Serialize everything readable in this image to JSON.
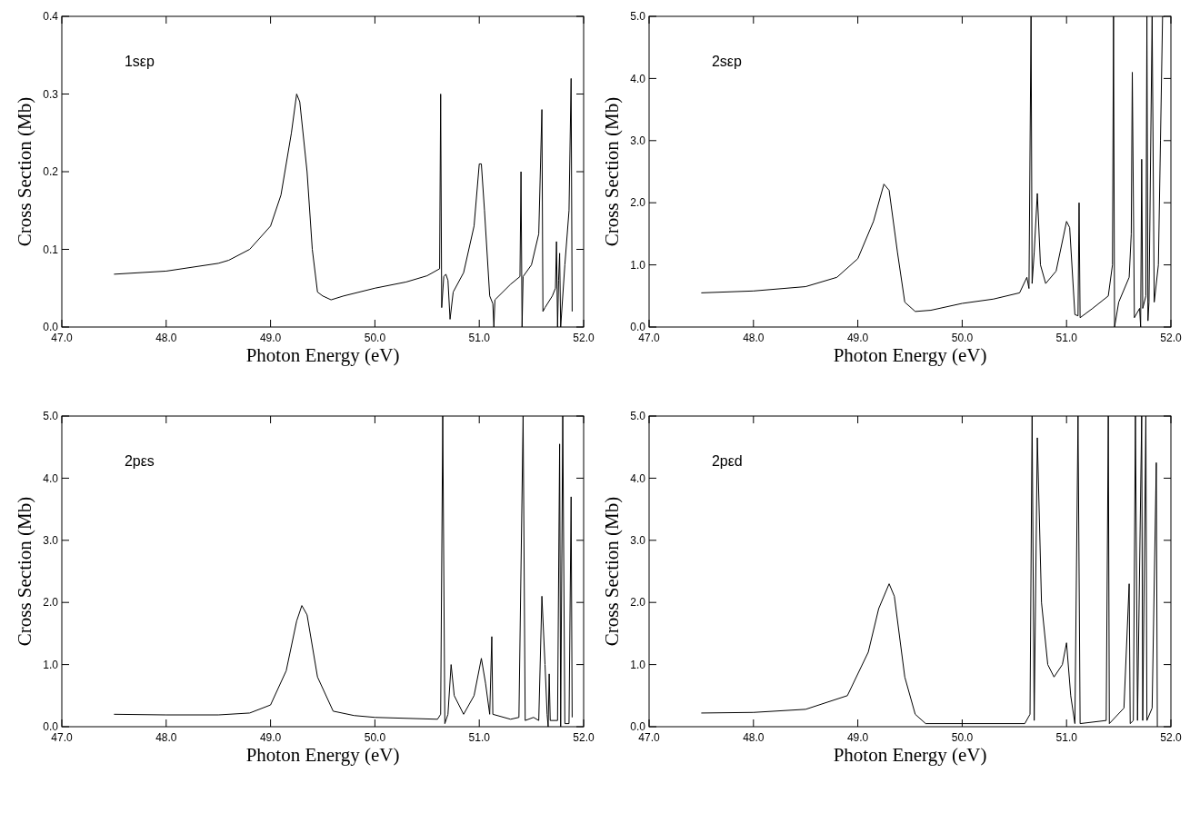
{
  "chart_data": [
    {
      "type": "line",
      "xlabel": "Photon Energy (eV)",
      "ylabel": "Cross Section (Mb)",
      "annotations": [
        "1sεp"
      ],
      "xlim": [
        47,
        52
      ],
      "ylim": [
        0,
        0.4
      ],
      "xticks": [
        {
          "value": 47,
          "label": "47.0"
        },
        {
          "value": 48,
          "label": "48.0"
        },
        {
          "value": 49,
          "label": "49.0"
        },
        {
          "value": 50,
          "label": "50.0"
        },
        {
          "value": 51,
          "label": "51.0"
        },
        {
          "value": 52,
          "label": "52.0"
        }
      ],
      "yticks": [
        {
          "value": 0,
          "label": "0.0"
        },
        {
          "value": 0.1,
          "label": "0.1"
        },
        {
          "value": 0.2,
          "label": "0.2"
        },
        {
          "value": 0.3,
          "label": "0.3"
        },
        {
          "value": 0.4,
          "label": "0.4"
        }
      ],
      "series": [
        {
          "color": "#000000",
          "x": [
            47.5,
            48,
            48.5,
            48.6,
            48.8,
            49,
            49.1,
            49.2,
            49.25,
            49.28,
            49.35,
            49.4,
            49.45,
            49.5,
            49.58,
            49.7,
            50,
            50.3,
            50.5,
            50.62,
            50.63,
            50.64,
            50.66,
            50.68,
            50.7,
            50.72,
            50.75,
            50.85,
            50.95,
            51,
            51.02,
            51.05,
            51.1,
            51.13,
            51.14,
            51.15,
            51.3,
            51.39,
            51.4,
            51.41,
            51.42,
            51.5,
            51.57,
            51.6,
            51.61,
            51.63,
            51.7,
            51.73,
            51.74,
            51.75,
            51.76,
            51.77,
            51.78,
            51.82,
            51.86,
            51.88,
            51.89
          ],
          "values": [
            0.068,
            0.072,
            0.082,
            0.086,
            0.1,
            0.13,
            0.17,
            0.25,
            0.3,
            0.29,
            0.2,
            0.1,
            0.045,
            0.04,
            0.035,
            0.04,
            0.05,
            0.058,
            0.066,
            0.075,
            0.3,
            0.025,
            0.065,
            0.068,
            0.06,
            0.01,
            0.045,
            0.07,
            0.13,
            0.21,
            0.21,
            0.15,
            0.04,
            0.03,
            0.0,
            0.035,
            0.055,
            0.065,
            0.2,
            0.0,
            0.065,
            0.08,
            0.12,
            0.28,
            0.02,
            0.025,
            0.04,
            0.05,
            0.11,
            0.0,
            0.06,
            0.095,
            0.0,
            0.08,
            0.15,
            0.32,
            0.02
          ]
        }
      ]
    },
    {
      "type": "line",
      "xlabel": "Photon Energy (eV)",
      "ylabel": "Cross Section (Mb)",
      "annotations": [
        "2sεp"
      ],
      "xlim": [
        47,
        52
      ],
      "ylim": [
        0,
        5
      ],
      "xticks": [
        {
          "value": 47,
          "label": "47.0"
        },
        {
          "value": 48,
          "label": "48.0"
        },
        {
          "value": 49,
          "label": "49.0"
        },
        {
          "value": 50,
          "label": "50.0"
        },
        {
          "value": 51,
          "label": "51.0"
        },
        {
          "value": 52,
          "label": "52.0"
        }
      ],
      "yticks": [
        {
          "value": 0,
          "label": "0.0"
        },
        {
          "value": 1,
          "label": "1.0"
        },
        {
          "value": 2,
          "label": "2.0"
        },
        {
          "value": 3,
          "label": "3.0"
        },
        {
          "value": 4,
          "label": "4.0"
        },
        {
          "value": 5,
          "label": "5.0"
        }
      ],
      "series": [
        {
          "color": "#000000",
          "x": [
            47.5,
            48,
            48.5,
            48.8,
            49,
            49.15,
            49.25,
            49.3,
            49.38,
            49.45,
            49.55,
            49.7,
            50,
            50.3,
            50.55,
            50.62,
            50.64,
            50.66,
            50.67,
            50.69,
            50.72,
            50.75,
            50.8,
            50.9,
            51,
            51.03,
            51.08,
            51.11,
            51.12,
            51.13,
            51.25,
            51.4,
            51.44,
            51.45,
            51.46,
            51.5,
            51.6,
            51.62,
            51.63,
            51.65,
            51.7,
            51.71,
            51.72,
            51.73,
            51.76,
            51.77,
            51.78,
            51.79,
            51.82,
            51.84,
            51.88,
            51.9,
            51.92,
            51.94
          ],
          "values": [
            0.55,
            0.58,
            0.65,
            0.8,
            1.1,
            1.7,
            2.3,
            2.2,
            1.2,
            0.4,
            0.25,
            0.27,
            0.38,
            0.45,
            0.55,
            0.8,
            0.62,
            5,
            0.7,
            1.2,
            2.15,
            1.0,
            0.7,
            0.9,
            1.7,
            1.6,
            0.2,
            0.18,
            2.0,
            0.15,
            0.3,
            0.5,
            1.0,
            5,
            0.0,
            0.4,
            0.8,
            1.5,
            4.1,
            0.15,
            0.3,
            0.0,
            2.7,
            0.3,
            0.5,
            5,
            0.1,
            0.4,
            5,
            0.4,
            1.0,
            3.0,
            5,
            5
          ]
        }
      ]
    },
    {
      "type": "line",
      "xlabel": "Photon Energy (eV)",
      "ylabel": "Cross Section (Mb)",
      "annotations": [
        "2pεs"
      ],
      "xlim": [
        47,
        52
      ],
      "ylim": [
        0,
        5
      ],
      "xticks": [
        {
          "value": 47,
          "label": "47.0"
        },
        {
          "value": 48,
          "label": "48.0"
        },
        {
          "value": 49,
          "label": "49.0"
        },
        {
          "value": 50,
          "label": "50.0"
        },
        {
          "value": 51,
          "label": "51.0"
        },
        {
          "value": 52,
          "label": "52.0"
        }
      ],
      "yticks": [
        {
          "value": 0,
          "label": "0.0"
        },
        {
          "value": 1,
          "label": "1.0"
        },
        {
          "value": 2,
          "label": "2.0"
        },
        {
          "value": 3,
          "label": "3.0"
        },
        {
          "value": 4,
          "label": "4.0"
        },
        {
          "value": 5,
          "label": "5.0"
        }
      ],
      "series": [
        {
          "color": "#000000",
          "x": [
            47.5,
            48,
            48.5,
            48.8,
            49,
            49.15,
            49.25,
            49.3,
            49.35,
            49.45,
            49.6,
            49.8,
            50,
            50.6,
            50.63,
            50.65,
            50.67,
            50.7,
            50.73,
            50.76,
            50.85,
            50.95,
            51.02,
            51.06,
            51.1,
            51.12,
            51.13,
            51.3,
            51.38,
            51.42,
            51.44,
            51.52,
            51.57,
            51.6,
            51.63,
            51.65,
            51.66,
            51.67,
            51.68,
            51.75,
            51.77,
            51.78,
            51.8,
            51.82,
            51.86,
            51.88,
            51.89
          ],
          "values": [
            0.2,
            0.19,
            0.19,
            0.22,
            0.35,
            0.9,
            1.7,
            1.95,
            1.8,
            0.8,
            0.25,
            0.18,
            0.15,
            0.12,
            0.2,
            5,
            0.05,
            0.2,
            1.0,
            0.5,
            0.2,
            0.5,
            1.1,
            0.7,
            0.2,
            1.45,
            0.2,
            0.12,
            0.15,
            5,
            0.1,
            0.15,
            0.1,
            2.1,
            1.0,
            0.2,
            0.0,
            0.85,
            0.1,
            0.1,
            4.55,
            0.0,
            5,
            0.05,
            0.05,
            3.7,
            0.15
          ]
        }
      ]
    },
    {
      "type": "line",
      "xlabel": "Photon Energy (eV)",
      "ylabel": "Cross Section (Mb)",
      "annotations": [
        "2pεd"
      ],
      "xlim": [
        47,
        52
      ],
      "ylim": [
        0,
        5
      ],
      "xticks": [
        {
          "value": 47,
          "label": "47.0"
        },
        {
          "value": 48,
          "label": "48.0"
        },
        {
          "value": 49,
          "label": "49.0"
        },
        {
          "value": 50,
          "label": "50.0"
        },
        {
          "value": 51,
          "label": "51.0"
        },
        {
          "value": 52,
          "label": "52.0"
        }
      ],
      "yticks": [
        {
          "value": 0,
          "label": "0.0"
        },
        {
          "value": 1,
          "label": "1.0"
        },
        {
          "value": 2,
          "label": "2.0"
        },
        {
          "value": 3,
          "label": "3.0"
        },
        {
          "value": 4,
          "label": "4.0"
        },
        {
          "value": 5,
          "label": "5.0"
        }
      ],
      "series": [
        {
          "color": "#000000",
          "x": [
            47.5,
            48,
            48.5,
            48.9,
            49.1,
            49.2,
            49.3,
            49.35,
            49.45,
            49.55,
            49.65,
            50,
            50.6,
            50.65,
            50.67,
            50.69,
            50.72,
            50.76,
            50.82,
            50.88,
            50.96,
            51,
            51.04,
            51.08,
            51.11,
            51.13,
            51.38,
            51.4,
            51.41,
            51.55,
            51.6,
            51.61,
            51.64,
            51.66,
            51.68,
            51.72,
            51.73,
            51.76,
            51.77,
            51.82,
            51.86,
            51.87
          ],
          "values": [
            0.22,
            0.23,
            0.28,
            0.5,
            1.2,
            1.9,
            2.3,
            2.1,
            0.8,
            0.2,
            0.05,
            0.05,
            0.05,
            0.2,
            5,
            0.1,
            4.65,
            2.0,
            1.0,
            0.8,
            1.0,
            1.35,
            0.5,
            0.05,
            5,
            0.05,
            0.1,
            5,
            0.05,
            0.3,
            2.3,
            0.05,
            0.1,
            5,
            0.1,
            5,
            0.1,
            5,
            0.1,
            0.3,
            4.25,
            0.0
          ]
        }
      ]
    }
  ]
}
